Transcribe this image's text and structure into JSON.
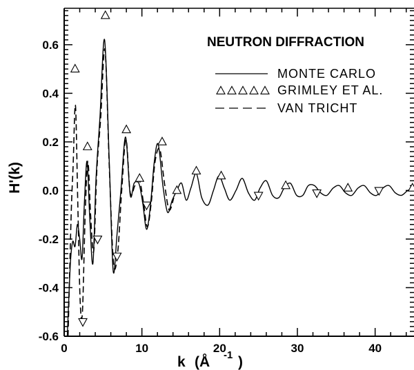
{
  "chart_data": {
    "type": "line",
    "title": "NEUTRON DIFFRACTION",
    "xlabel": "k (Å⁻¹)",
    "xlabel_main": "k",
    "xlabel_unit": "(Å",
    "xlabel_exp": "-1",
    "xlabel_close": ")",
    "ylabel": "H'(k)",
    "xlim": [
      0,
      45
    ],
    "ylim": [
      -0.6,
      0.75
    ],
    "xticks": [
      0,
      10,
      20,
      30,
      40
    ],
    "xtick_labels": [
      "0",
      "10",
      "20",
      "30",
      "40"
    ],
    "yticks": [
      -0.6,
      -0.4,
      -0.2,
      0.0,
      0.2,
      0.4,
      0.6
    ],
    "ytick_labels": [
      "-0.6",
      "-0.4",
      "-0.2",
      "0.0",
      "0.2",
      "0.4",
      "0.6"
    ],
    "legend_position": "top-right",
    "series": [
      {
        "name": "MONTE CARLO",
        "style": "solid",
        "x": [
          0.4,
          0.8,
          1.1,
          1.4,
          1.7,
          2.0,
          2.3,
          2.6,
          2.95,
          3.3,
          3.7,
          4.1,
          4.6,
          5.2,
          5.8,
          6.3,
          6.8,
          7.3,
          7.9,
          8.5,
          9.0,
          9.6,
          10.1,
          10.6,
          11.1,
          11.6,
          12.1,
          12.7,
          13.3,
          13.9,
          14.5,
          15.1,
          15.7,
          16.3,
          17.0,
          17.7,
          18.5,
          19.2,
          19.9,
          20.6,
          21.3,
          22.1,
          22.9,
          23.7,
          24.5,
          25.2,
          26.0,
          26.8,
          27.6,
          28.3,
          29.1,
          29.9,
          30.7,
          31.4,
          32.2,
          33.0,
          33.8,
          34.6,
          35.4,
          36.2,
          37.0,
          37.8,
          38.6,
          39.4,
          40.2,
          41.0,
          41.8,
          42.6,
          43.4,
          44.2,
          45.0
        ],
        "y": [
          -0.6,
          -0.3,
          -0.21,
          -0.23,
          -0.14,
          -0.2,
          -0.28,
          -0.05,
          0.12,
          -0.12,
          -0.3,
          0.05,
          0.3,
          0.62,
          0.12,
          -0.33,
          -0.18,
          0.0,
          0.22,
          -0.02,
          0.03,
          0.03,
          -0.05,
          -0.16,
          -0.06,
          0.12,
          0.19,
          0.02,
          -0.09,
          -0.04,
          0.0,
          0.03,
          -0.04,
          0.01,
          0.07,
          -0.03,
          -0.06,
          0.0,
          0.06,
          0.01,
          -0.04,
          0.0,
          0.05,
          -0.01,
          -0.04,
          0.01,
          0.04,
          -0.02,
          -0.03,
          0.01,
          0.03,
          -0.02,
          -0.02,
          0.02,
          0.02,
          -0.01,
          -0.02,
          0.01,
          0.02,
          -0.01,
          -0.02,
          0.01,
          0.02,
          -0.01,
          -0.02,
          0.01,
          0.02,
          -0.01,
          -0.02,
          0.0,
          0.01
        ]
      },
      {
        "name": "GRIMLEY ET AL.",
        "style": "markers",
        "x": [
          1.4,
          2.4,
          3.0,
          4.3,
          5.3,
          6.8,
          8.0,
          9.7,
          10.6,
          12.6,
          14.5,
          17.0,
          20.2,
          25.0,
          28.5,
          32.5,
          36.5,
          40.5,
          44.8
        ],
        "y": [
          0.5,
          -0.54,
          0.18,
          -0.2,
          0.72,
          -0.27,
          0.25,
          0.05,
          -0.06,
          0.2,
          0.0,
          0.08,
          0.06,
          -0.02,
          0.02,
          -0.01,
          0.01,
          0.0,
          0.01
        ],
        "markers": [
          "up",
          "down",
          "up",
          "down",
          "up",
          "down",
          "up",
          "up",
          "down",
          "up",
          "up",
          "up",
          "up",
          "down",
          "up",
          "down",
          "up",
          "down",
          "up"
        ]
      },
      {
        "name": "VAN TRICHT",
        "style": "dashed",
        "x": [
          0.5,
          0.9,
          1.15,
          1.45,
          1.75,
          2.05,
          2.35,
          2.7,
          3.05,
          3.4,
          3.8,
          4.2,
          4.7,
          5.25,
          5.8,
          6.35,
          6.9,
          7.4,
          7.95,
          8.5,
          9.1,
          9.7,
          10.2,
          10.7,
          11.2,
          11.7,
          12.3,
          12.9,
          13.5,
          14.1
        ],
        "y": [
          -0.6,
          -0.1,
          0.1,
          0.35,
          -0.05,
          -0.45,
          -0.5,
          -0.1,
          0.12,
          -0.1,
          -0.25,
          0.08,
          0.3,
          0.58,
          0.1,
          -0.3,
          -0.25,
          0.0,
          0.21,
          -0.01,
          0.02,
          0.04,
          -0.05,
          -0.15,
          -0.05,
          0.12,
          0.17,
          0.03,
          -0.08,
          -0.03
        ]
      }
    ]
  }
}
